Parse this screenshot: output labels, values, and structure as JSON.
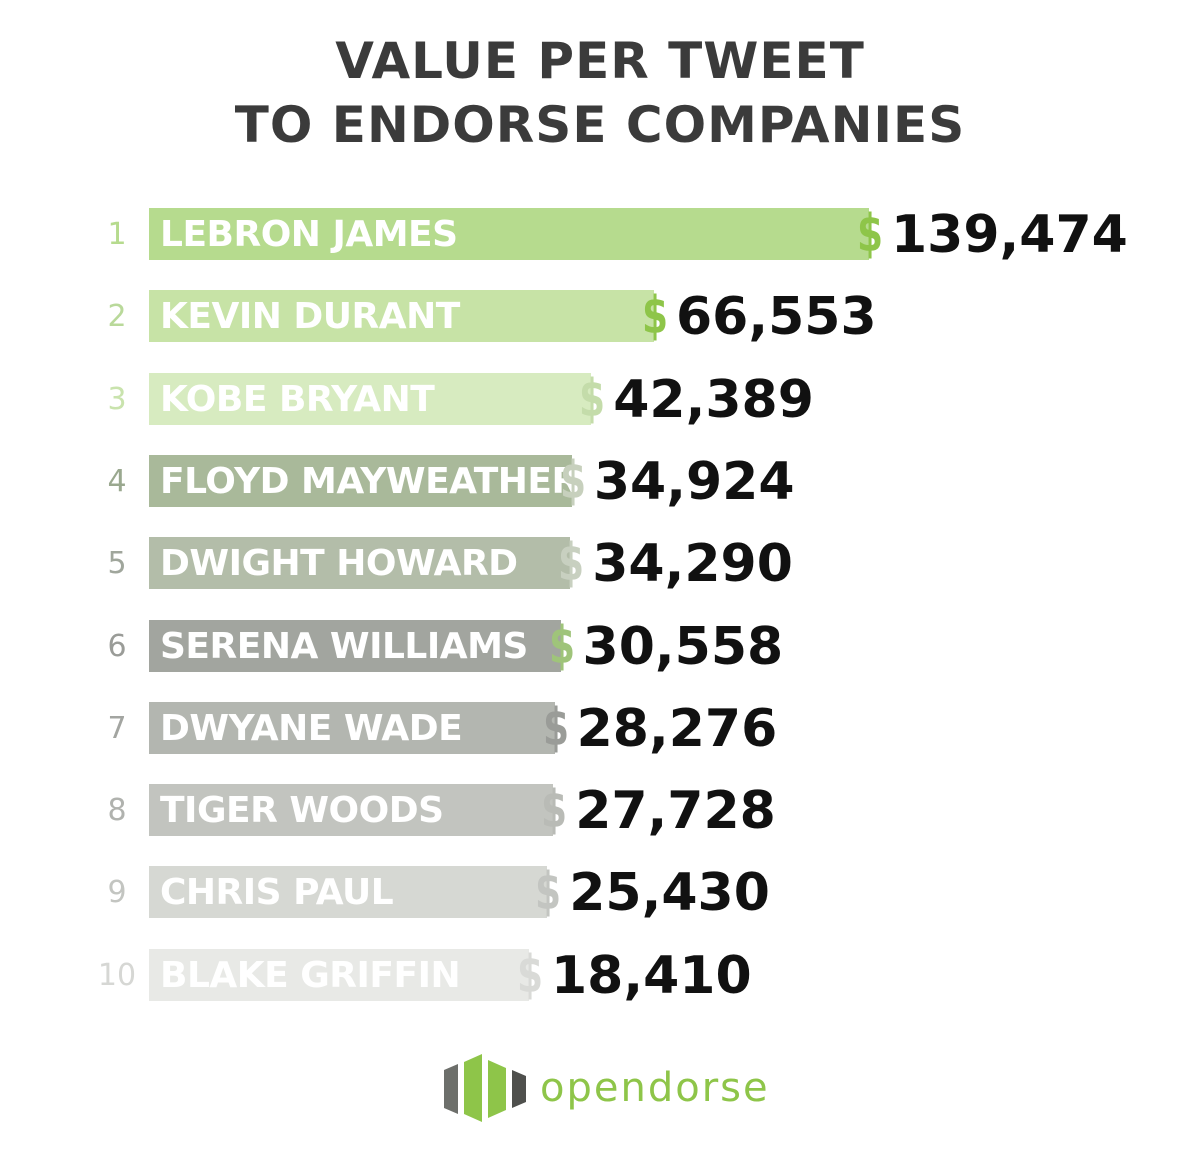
{
  "chart_data": {
    "type": "bar",
    "orientation": "horizontal",
    "title": "VALUE PER TWEET TO ENDORSE COMPANIES",
    "title_lines": [
      "VALUE PER TWEET",
      "TO ENDORSE COMPANIES"
    ],
    "currency_symbol": "$",
    "ranks": [
      "1",
      "2",
      "3",
      "4",
      "5",
      "6",
      "7",
      "8",
      "9",
      "10"
    ],
    "categories": [
      "LEBRON JAMES",
      "KEVIN DURANT",
      "KOBE BRYANT",
      "FLOYD MAYWEATHER",
      "DWIGHT HOWARD",
      "SERENA WILLIAMS",
      "DWYANE WADE",
      "TIGER WOODS",
      "CHRIS PAUL",
      "BLAKE GRIFFIN"
    ],
    "values": [
      139474,
      66553,
      42389,
      34924,
      34290,
      30558,
      28276,
      27728,
      25430,
      18410
    ],
    "value_labels": [
      "139,474",
      "66,553",
      "42,389",
      "34,924",
      "34,290",
      "30,558",
      "28,276",
      "27,728",
      "25,430",
      "18,410"
    ],
    "bar_colors": [
      "#b6db8e",
      "#c7e3a6",
      "#d7ebc0",
      "#a9b99a",
      "#b3bda9",
      "#a2a59f",
      "#b3b6b0",
      "#c2c4bf",
      "#d6d8d3",
      "#e8e9e6"
    ],
    "rank_colors": [
      "#b6db8e",
      "#b9d99a",
      "#c9e3ad",
      "#9aa88f",
      "#a0a69c",
      "#9a9c98",
      "#a3a5a1",
      "#b0b2ae",
      "#c3c5c1",
      "#d6d7d4"
    ],
    "dollar_colors": [
      "#8ec549",
      "#8ec549",
      "#c4dcaa",
      "#c7d0bd",
      "#c8d0c0",
      "#9fc47a",
      "#9a9c98",
      "#b9bbb6",
      "#c3c5c1",
      "#d9dad7"
    ]
  },
  "brand": {
    "name": "opendorse",
    "accent_color": "#8ec549",
    "icon": "opendorse-logo-icon"
  }
}
